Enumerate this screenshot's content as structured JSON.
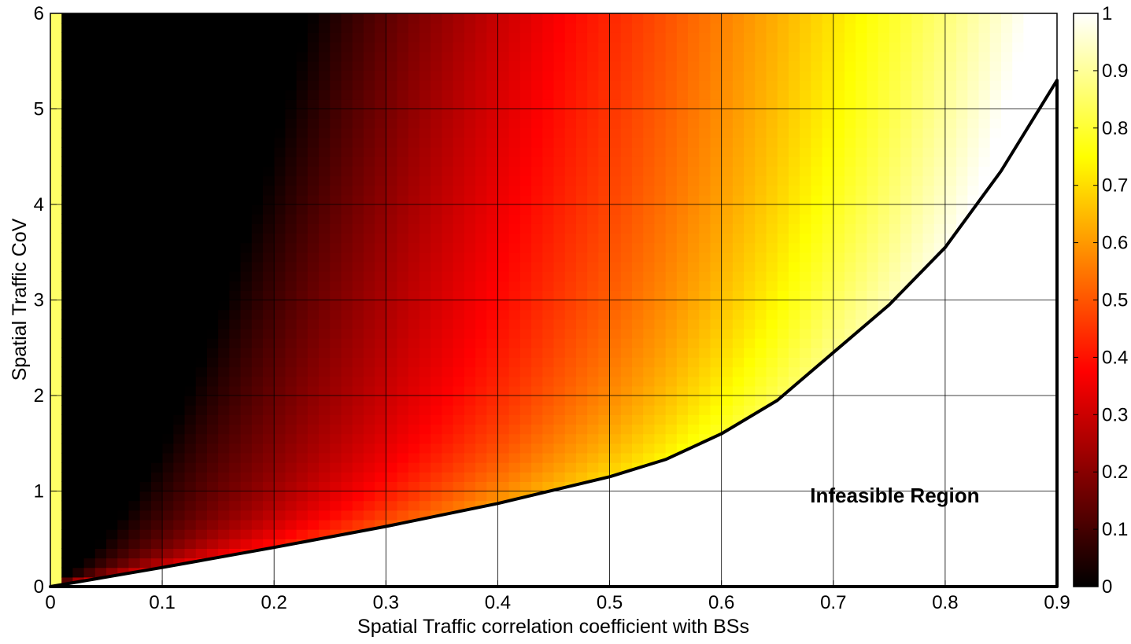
{
  "chart_data": {
    "type": "heatmap",
    "title": "",
    "xlabel": "Spatial Traffic correlation coefficient with BSs",
    "ylabel": "Spatial Traffic CoV",
    "xlim": [
      0,
      0.9
    ],
    "ylim": [
      0,
      6
    ],
    "x_ticks": [
      "0",
      "0.1",
      "0.2",
      "0.3",
      "0.4",
      "0.5",
      "0.6",
      "0.7",
      "0.8",
      "0.9"
    ],
    "y_ticks": [
      "0",
      "1",
      "2",
      "3",
      "4",
      "5",
      "6"
    ],
    "grid": true,
    "colormap": "hot",
    "colorbar": {
      "range": [
        0,
        1
      ],
      "ticks": [
        "0",
        "0.1",
        "0.2",
        "0.3",
        "0.4",
        "0.5",
        "0.6",
        "0.7",
        "0.8",
        "0.9",
        "1"
      ],
      "placement": "right"
    },
    "feasibility_boundary": {
      "x": [
        0,
        0.1,
        0.2,
        0.3,
        0.4,
        0.5,
        0.55,
        0.6,
        0.65,
        0.7,
        0.75,
        0.8,
        0.85,
        0.9
      ],
      "y": [
        0,
        0.2,
        0.41,
        0.63,
        0.87,
        1.15,
        1.33,
        1.6,
        1.95,
        2.45,
        2.95,
        3.55,
        4.35,
        5.3
      ]
    },
    "annotations": [
      {
        "text": "Infeasible Region",
        "x": 0.755,
        "y": 0.88
      }
    ]
  }
}
